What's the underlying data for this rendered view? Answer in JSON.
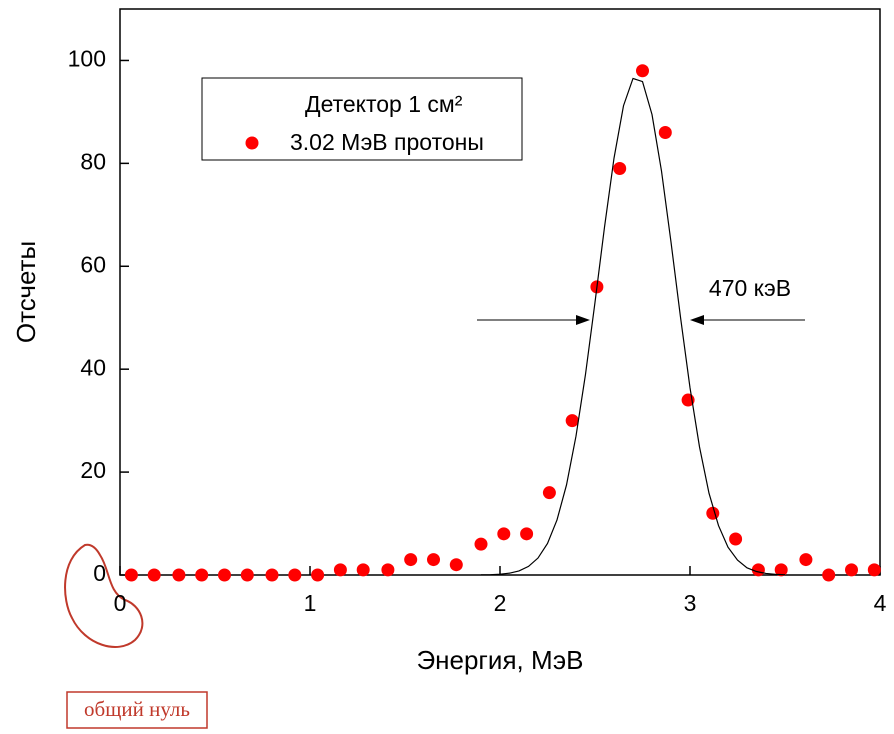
{
  "chart_data": {
    "type": "scatter",
    "xlabel": "Энергия, МэВ",
    "ylabel": "Отсчеты",
    "legend_title": "Детектор 1 см²",
    "annotations": [
      "470 кэВ",
      "общий нуль"
    ],
    "xlim": [
      0,
      4
    ],
    "xticks": [
      0,
      1,
      2,
      3,
      4
    ],
    "ylim": [
      0,
      110
    ],
    "yticks": [
      0,
      20,
      40,
      60,
      80,
      100
    ],
    "series": [
      {
        "type": "scatter",
        "name": "3.02 МэВ протоны",
        "color": "#ff0000",
        "x": [
          0.06,
          0.18,
          0.31,
          0.43,
          0.55,
          0.67,
          0.8,
          0.92,
          1.04,
          1.16,
          1.28,
          1.41,
          1.53,
          1.65,
          1.77,
          1.9,
          2.02,
          2.14,
          2.26,
          2.38,
          2.51,
          2.63,
          2.75,
          2.87,
          2.99,
          3.12,
          3.24,
          3.36,
          3.48,
          3.61,
          3.73,
          3.85,
          3.97
        ],
        "values": [
          0,
          0,
          0,
          0,
          0,
          0,
          0,
          0,
          0,
          1,
          1,
          1,
          3,
          3,
          2,
          6,
          8,
          8,
          16,
          30,
          56,
          79,
          98,
          86,
          34,
          12,
          7,
          1,
          1,
          3,
          0,
          1,
          1
        ]
      },
      {
        "type": "line",
        "color": "#000000",
        "x": [
          1.9,
          1.95,
          2.0,
          2.05,
          2.1,
          2.15,
          2.2,
          2.25,
          2.3,
          2.35,
          2.4,
          2.45,
          2.5,
          2.55,
          2.6,
          2.65,
          2.7,
          2.75,
          2.8,
          2.85,
          2.9,
          2.95,
          3.0,
          3.05,
          3.1,
          3.15,
          3.2,
          3.25,
          3.3,
          3.35,
          3.4,
          3.45,
          3.5
        ],
        "values": [
          0.02,
          0.06,
          0.15,
          0.36,
          0.79,
          1.67,
          3.3,
          6.13,
          10.7,
          17.5,
          27.0,
          39.0,
          53.0,
          67.6,
          81.0,
          91.2,
          96.5,
          95.9,
          89.5,
          78.5,
          64.7,
          50.1,
          36.4,
          24.9,
          15.9,
          9.6,
          5.4,
          2.9,
          1.4,
          0.68,
          0.3,
          0.12,
          0.05
        ]
      }
    ]
  }
}
